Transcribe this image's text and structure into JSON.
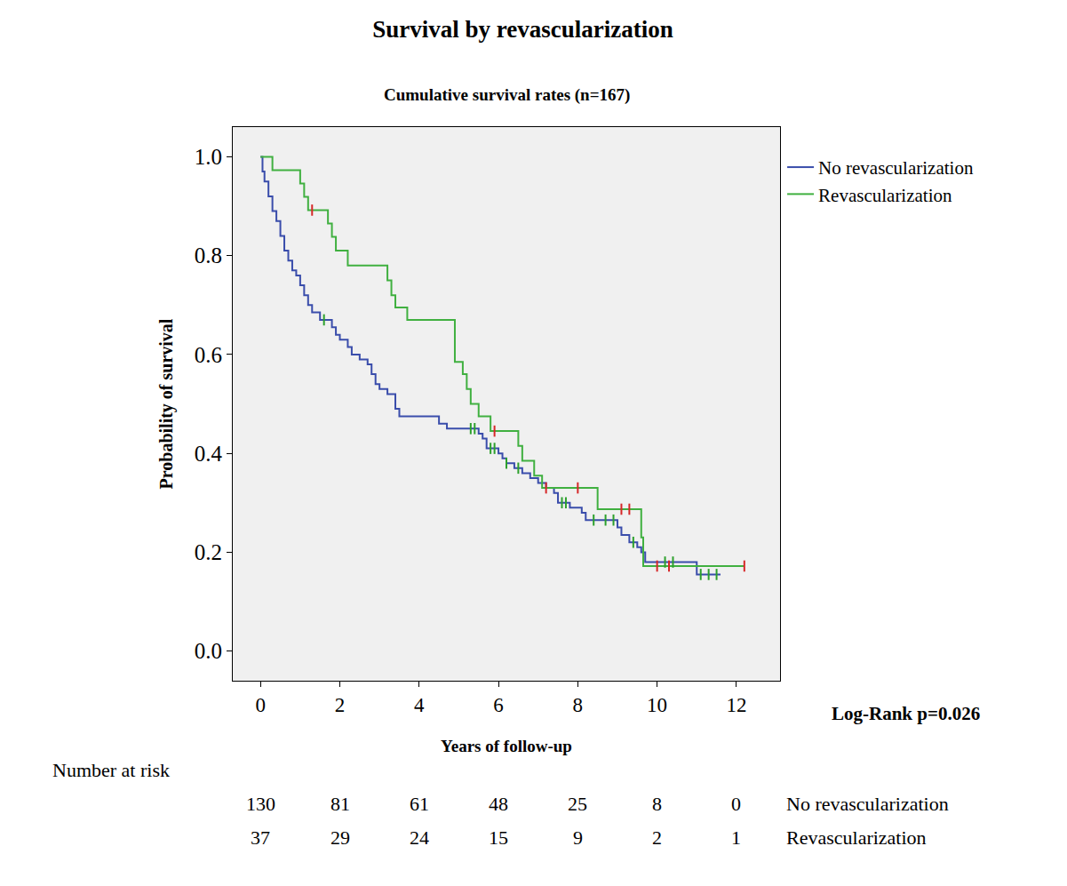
{
  "chart_data": {
    "type": "kaplan-meier",
    "title": "Survival by revascularization",
    "subtitle": "Cumulative survival rates (n=167)",
    "x_label": "Years of follow-up",
    "y_label": "Probability of survival",
    "annotation": "Log-Rank p=0.026",
    "xlim": [
      -0.7,
      13.1
    ],
    "ylim": [
      -0.06,
      1.06
    ],
    "xticks": [
      0,
      2,
      4,
      6,
      8,
      10,
      12
    ],
    "yticks": [
      {
        "value": 0,
        "label": "0.0"
      },
      0.2,
      0.4,
      0.6,
      0.8,
      {
        "value": 1,
        "label": "1.0"
      }
    ],
    "grid": false,
    "legend": "right",
    "marker": "line-ns",
    "line_style": "step",
    "series": [
      {
        "name": "No revascularization",
        "color": "#3a4dab",
        "x": [
          0,
          0.05,
          0.1,
          0.2,
          0.3,
          0.4,
          0.5,
          0.6,
          0.7,
          0.8,
          0.9,
          1.0,
          1.1,
          1.2,
          1.3,
          1.5,
          1.8,
          1.9,
          2.0,
          2.2,
          2.3,
          2.5,
          2.7,
          2.8,
          2.9,
          3.0,
          3.2,
          3.4,
          3.5,
          4.5,
          4.7,
          5.5,
          5.6,
          5.7,
          6.0,
          6.1,
          6.2,
          6.4,
          6.6,
          6.8,
          7.0,
          7.2,
          7.4,
          7.5,
          7.8,
          8.1,
          8.2,
          9.0,
          9.1,
          9.3,
          9.5,
          9.6,
          9.7,
          11.0,
          11.6
        ],
        "values": [
          1.0,
          0.97,
          0.95,
          0.92,
          0.89,
          0.87,
          0.84,
          0.81,
          0.79,
          0.77,
          0.76,
          0.74,
          0.72,
          0.7,
          0.685,
          0.67,
          0.655,
          0.64,
          0.63,
          0.615,
          0.6,
          0.59,
          0.58,
          0.56,
          0.54,
          0.53,
          0.52,
          0.49,
          0.475,
          0.46,
          0.45,
          0.44,
          0.43,
          0.41,
          0.4,
          0.39,
          0.38,
          0.37,
          0.36,
          0.35,
          0.34,
          0.33,
          0.32,
          0.3,
          0.29,
          0.28,
          0.265,
          0.25,
          0.235,
          0.22,
          0.21,
          0.2,
          0.18,
          0.155,
          0.155
        ],
        "censored_x": [
          1.6,
          5.3,
          5.4,
          5.8,
          5.9,
          6.2,
          6.5,
          7.6,
          7.7,
          8.4,
          8.7,
          8.9,
          9.4,
          10.2,
          10.4,
          11.1,
          11.3,
          11.5
        ],
        "censored_values": [
          0.67,
          0.45,
          0.45,
          0.41,
          0.41,
          0.38,
          0.37,
          0.3,
          0.3,
          0.265,
          0.265,
          0.265,
          0.22,
          0.18,
          0.18,
          0.155,
          0.155,
          0.155
        ]
      },
      {
        "name": "Revascularization",
        "color": "#40b040",
        "x": [
          0,
          0.3,
          1.0,
          1.1,
          1.2,
          1.7,
          1.8,
          1.9,
          2.2,
          3.2,
          3.3,
          3.4,
          3.7,
          4.9,
          5.1,
          5.2,
          5.3,
          5.5,
          5.8,
          6.5,
          6.6,
          6.9,
          7.1,
          8.5,
          9.6,
          9.65,
          12.2
        ],
        "values": [
          1.0,
          0.973,
          0.946,
          0.919,
          0.892,
          0.865,
          0.838,
          0.81,
          0.78,
          0.75,
          0.72,
          0.695,
          0.67,
          0.585,
          0.56,
          0.53,
          0.5,
          0.475,
          0.445,
          0.415,
          0.385,
          0.355,
          0.33,
          0.287,
          0.23,
          0.172,
          0.172
        ],
        "censored_x": [
          1.3,
          5.9,
          7.2,
          8.0,
          9.1,
          9.3,
          10.0,
          10.3,
          12.2
        ],
        "censored_values": [
          0.892,
          0.445,
          0.33,
          0.33,
          0.287,
          0.287,
          0.172,
          0.172,
          0.172
        ]
      }
    ],
    "number_at_risk": {
      "title": "Number at risk",
      "x": [
        0,
        2,
        4,
        6,
        8,
        10,
        12
      ],
      "rows": [
        {
          "name": "No revascularization",
          "values": [
            130,
            81,
            61,
            48,
            25,
            8,
            0
          ]
        },
        {
          "name": "Revascularization",
          "values": [
            37,
            29,
            24,
            15,
            9,
            2,
            1
          ]
        }
      ]
    }
  }
}
